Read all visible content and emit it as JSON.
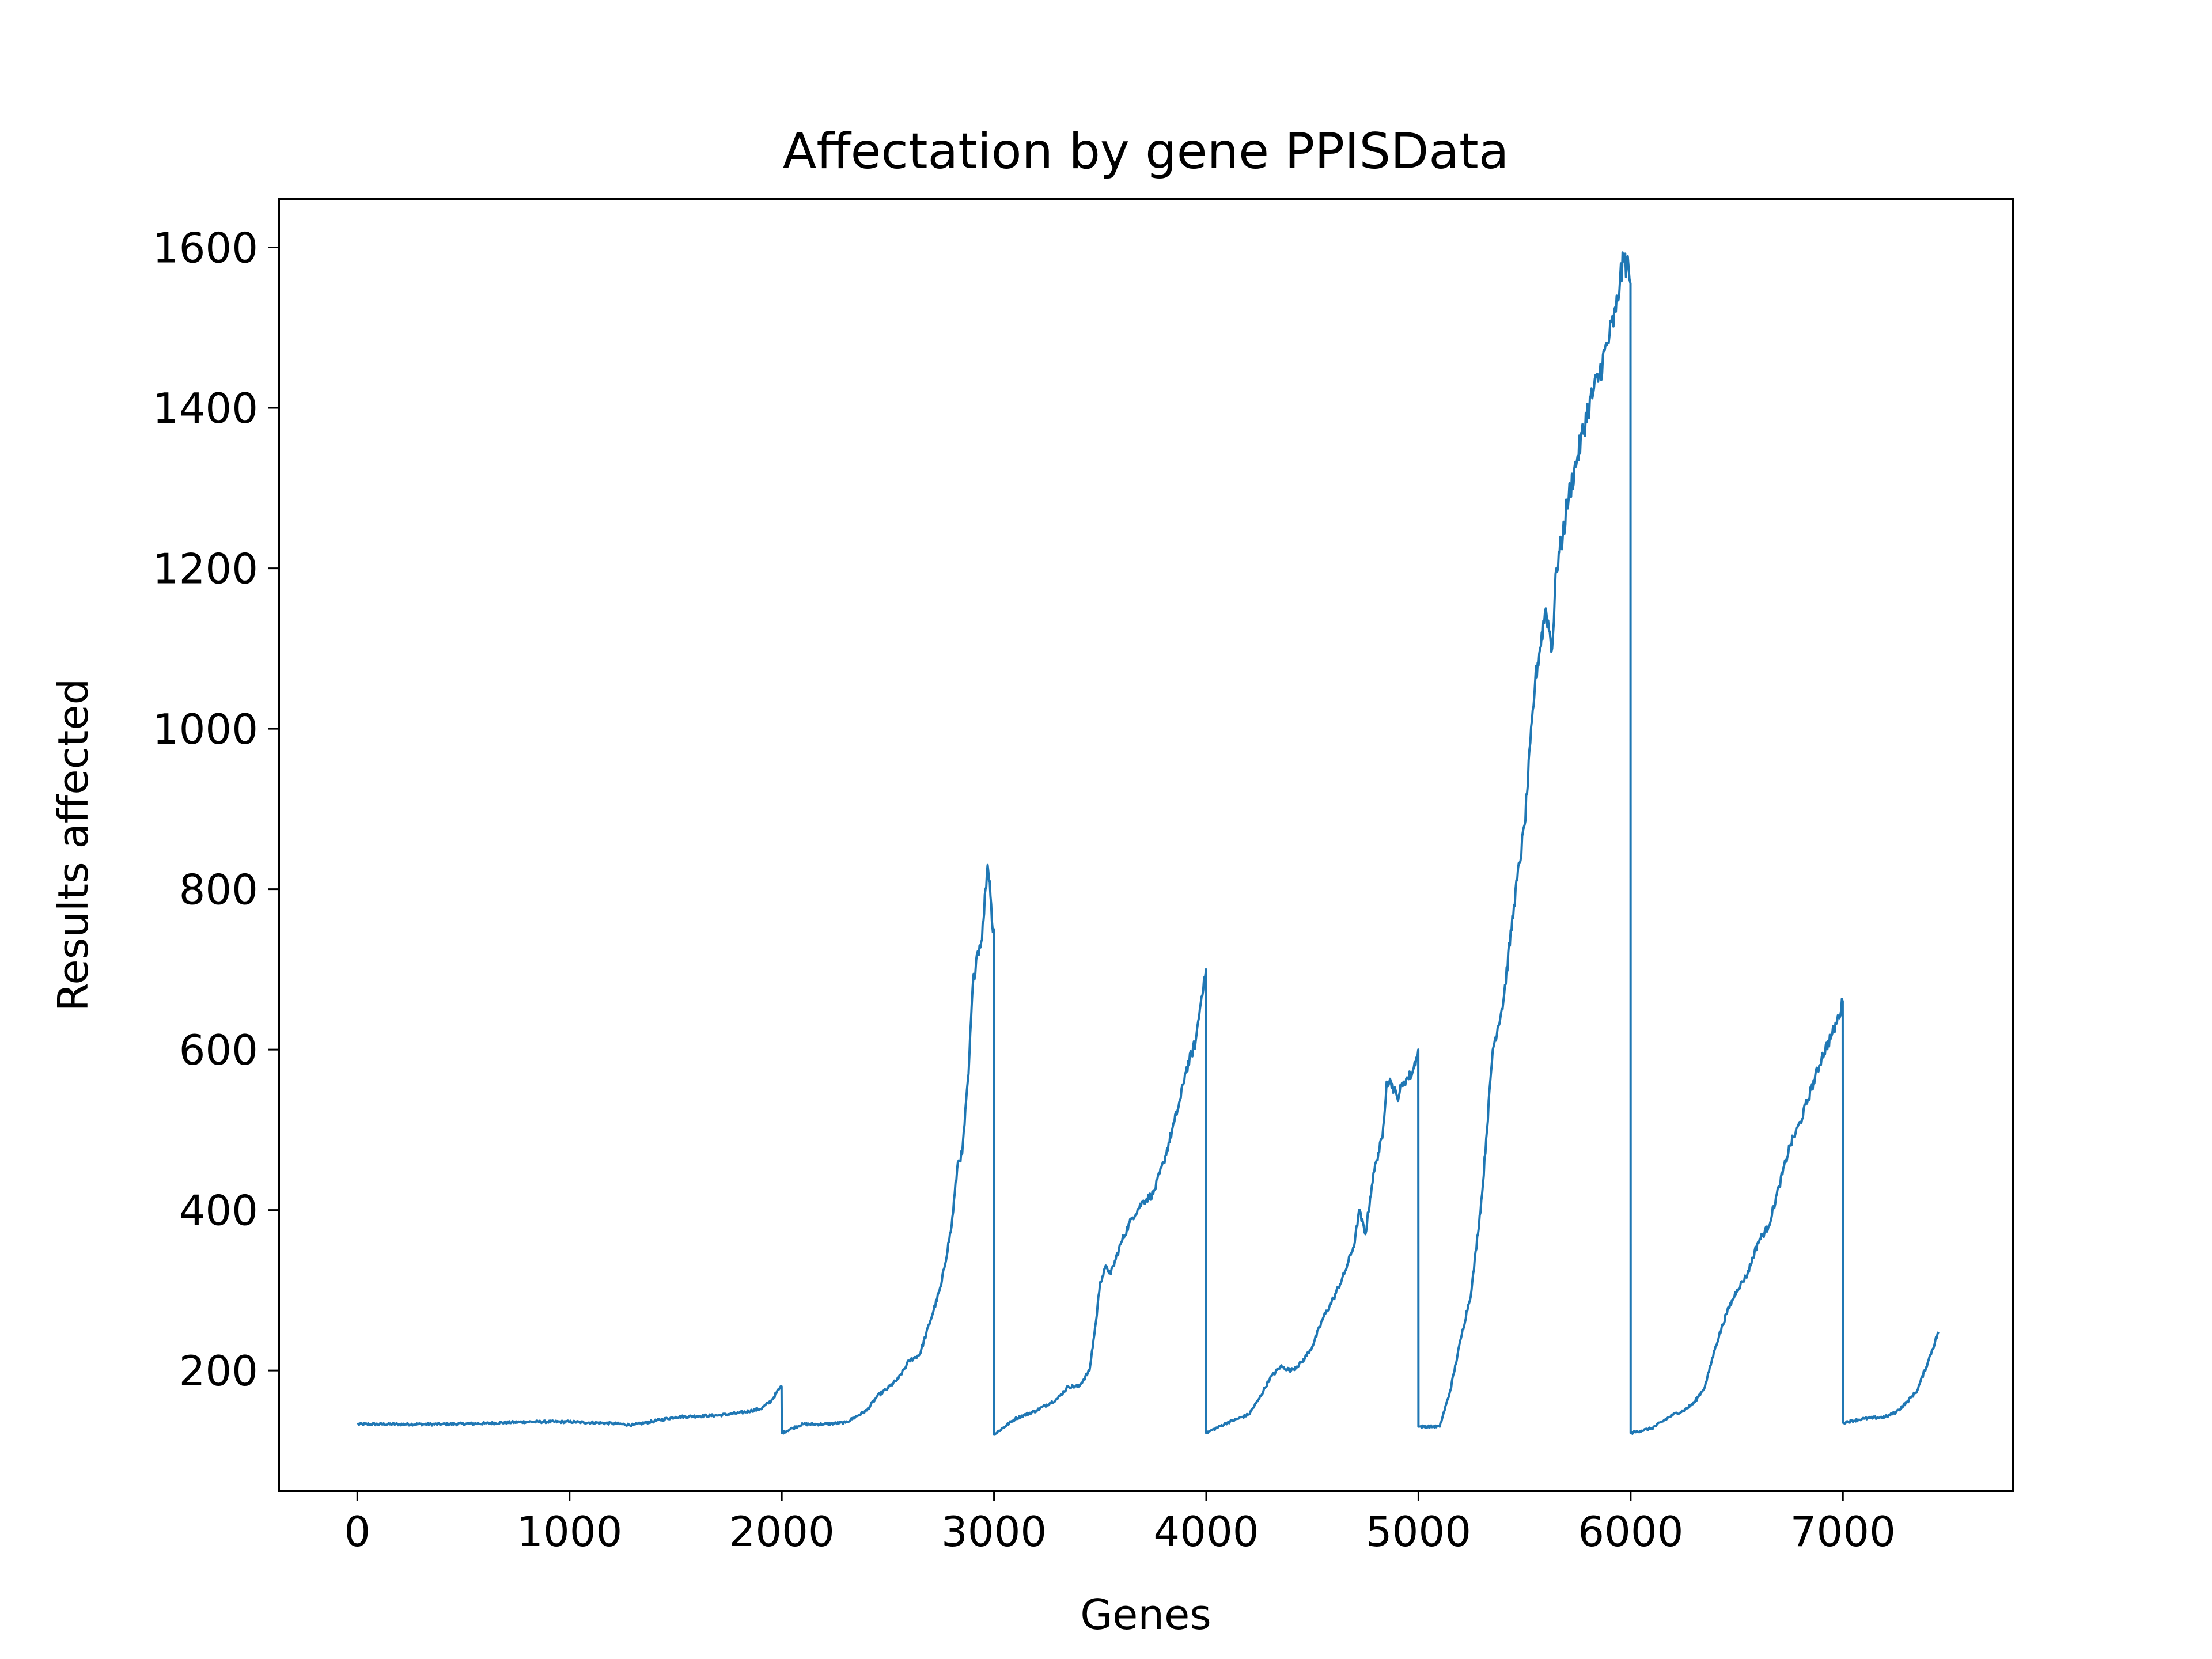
{
  "chart_data": {
    "type": "line",
    "title": "Affectation by gene PPISData",
    "xlabel": "Genes",
    "ylabel": "Results affected",
    "xlim": [
      -370,
      7800
    ],
    "ylim": [
      50,
      1660
    ],
    "xticks": [
      0,
      1000,
      2000,
      3000,
      4000,
      5000,
      6000,
      7000
    ],
    "xtick_labels": [
      "0",
      "1000",
      "2000",
      "3000",
      "4000",
      "5000",
      "6000",
      "7000"
    ],
    "yticks": [
      200,
      400,
      600,
      800,
      1000,
      1200,
      1400,
      1600
    ],
    "ytick_labels": [
      "200",
      "400",
      "600",
      "800",
      "1000",
      "1200",
      "1400",
      "1600"
    ],
    "grid": false,
    "legend": "none",
    "series": [
      {
        "color": "#1f77b4",
        "x": [
          0,
          200,
          400,
          600,
          800,
          1000,
          1200,
          1300,
          1400,
          1500,
          1600,
          1700,
          1800,
          1900,
          1950,
          1990,
          1999,
          2000,
          2050,
          2100,
          2200,
          2300,
          2400,
          2450,
          2500,
          2550,
          2600,
          2650,
          2700,
          2750,
          2800,
          2830,
          2850,
          2880,
          2900,
          2920,
          2940,
          2950,
          2960,
          2970,
          2980,
          2990,
          2999,
          3000,
          3100,
          3200,
          3300,
          3350,
          3400,
          3450,
          3480,
          3500,
          3530,
          3550,
          3600,
          3650,
          3700,
          3750,
          3800,
          3850,
          3880,
          3900,
          3950,
          3970,
          3990,
          3999,
          4000,
          4100,
          4200,
          4250,
          4300,
          4350,
          4400,
          4450,
          4500,
          4550,
          4600,
          4650,
          4700,
          4720,
          4750,
          4780,
          4800,
          4830,
          4850,
          4870,
          4900,
          4930,
          4950,
          4970,
          4990,
          4999,
          5000,
          5100,
          5150,
          5200,
          5250,
          5300,
          5350,
          5400,
          5450,
          5500,
          5550,
          5600,
          5630,
          5650,
          5680,
          5700,
          5750,
          5800,
          5850,
          5900,
          5930,
          5950,
          5970,
          5990,
          5999,
          6000,
          6100,
          6200,
          6250,
          6300,
          6350,
          6400,
          6450,
          6500,
          6550,
          6600,
          6650,
          6700,
          6750,
          6800,
          6850,
          6900,
          6950,
          6980,
          6999,
          7000,
          7100,
          7200,
          7250,
          7300,
          7350,
          7400,
          7450
        ],
        "y": [
          133,
          133,
          133,
          134,
          136,
          136,
          134,
          132,
          137,
          142,
          143,
          144,
          147,
          152,
          162,
          178,
          180,
          122,
          128,
          133,
          133,
          135,
          150,
          168,
          178,
          190,
          212,
          220,
          262,
          305,
          380,
          460,
          470,
          570,
          680,
          720,
          735,
          760,
          800,
          830,
          810,
          760,
          750,
          120,
          140,
          150,
          165,
          180,
          180,
          200,
          260,
          310,
          330,
          320,
          360,
          390,
          410,
          420,
          460,
          510,
          540,
          570,
          610,
          650,
          690,
          700,
          122,
          135,
          145,
          165,
          190,
          205,
          200,
          210,
          230,
          265,
          290,
          320,
          360,
          400,
          370,
          430,
          460,
          490,
          560,
          560,
          540,
          560,
          565,
          570,
          590,
          600,
          130,
          130,
          175,
          240,
          300,
          420,
          600,
          660,
          780,
          880,
          1060,
          1150,
          1100,
          1200,
          1240,
          1280,
          1340,
          1400,
          1440,
          1490,
          1520,
          1560,
          1585,
          1575,
          1555,
          122,
          128,
          145,
          150,
          160,
          180,
          230,
          270,
          300,
          320,
          360,
          380,
          430,
          480,
          510,
          550,
          590,
          620,
          640,
          660,
          135,
          140,
          142,
          148,
          160,
          175,
          210,
          248
        ]
      }
    ]
  }
}
